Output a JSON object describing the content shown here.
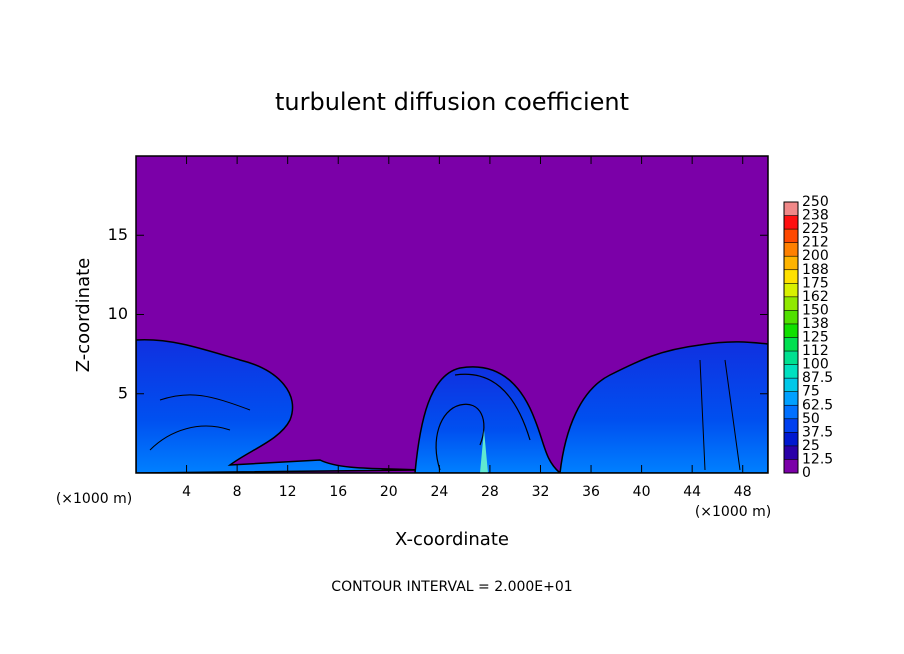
{
  "chart_data": {
    "type": "contour",
    "title": "turbulent diffusion coefficient",
    "x_label": "X-coordinate",
    "y_label": "Z-coordinate",
    "x_unit": "(×1000 m)",
    "x_unit_2": "(×1000 m)",
    "footer": "CONTOUR INTERVAL = 2.000E+01",
    "xlim": [
      0,
      50
    ],
    "xticks": [
      4,
      8,
      12,
      16,
      20,
      24,
      28,
      32,
      36,
      40,
      44,
      48
    ],
    "ylim": [
      0,
      20
    ],
    "yticks": [
      5,
      10,
      15
    ],
    "colorbar": {
      "ticks": [
        0,
        12.5,
        25,
        37.5,
        50,
        62.5,
        75,
        87.5,
        100,
        {
          "value": 112.5,
          "label": "112"
        },
        125,
        {
          "value": 137.5,
          "label": "138"
        },
        150,
        {
          "value": 162.5,
          "label": "162"
        },
        175,
        {
          "value": 187.5,
          "label": "188"
        },
        200,
        {
          "value": 212.5,
          "label": "212"
        },
        225,
        {
          "value": 237.5,
          "label": "238"
        },
        250
      ],
      "colors": [
        "#7b00a8",
        "#2a00a8",
        "#0018d0",
        "#0040f0",
        "#0070ff",
        "#00a0ff",
        "#00c8e8",
        "#00e0c0",
        "#00e090",
        "#00e050",
        "#10e000",
        "#50e000",
        "#90e800",
        "#d8f000",
        "#ffe000",
        "#ffb400",
        "#ff8000",
        "#ff4800",
        "#ff1010",
        "#f08888"
      ]
    }
  }
}
